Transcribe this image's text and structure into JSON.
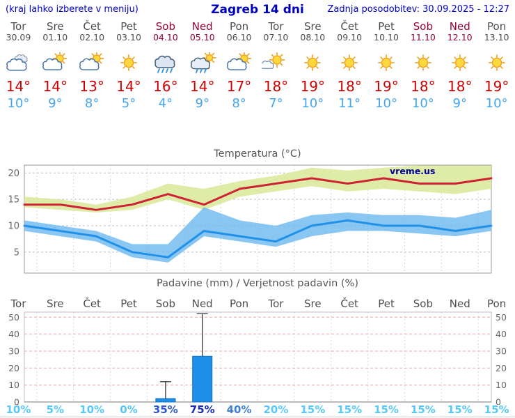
{
  "header": {
    "left_note": "(kraj lahko izberete v meniju)",
    "title": "Zagreb 14 dni",
    "updated": "Zadnja posodobitev: 30.09.2025 - 12:27"
  },
  "colors": {
    "header_blue": "#0000cc",
    "weekday_gray": "#4d4d4d",
    "weekend_red": "#990033",
    "high_temp_red": "#cc0000",
    "low_temp_blue": "#44a5ee"
  },
  "days": [
    {
      "name": "Tor",
      "date": "30.09",
      "weekend": false,
      "icon": "cloudy",
      "high": "14°",
      "low": "10°"
    },
    {
      "name": "Sre",
      "date": "01.10",
      "weekend": false,
      "icon": "partly-cloudy",
      "high": "14°",
      "low": "9°"
    },
    {
      "name": "Čet",
      "date": "02.10",
      "weekend": false,
      "icon": "partly-cloudy",
      "high": "13°",
      "low": "8°"
    },
    {
      "name": "Pet",
      "date": "03.10",
      "weekend": false,
      "icon": "sunny",
      "high": "14°",
      "low": "5°"
    },
    {
      "name": "Sob",
      "date": "04.10",
      "weekend": true,
      "icon": "rain",
      "high": "16°",
      "low": "4°"
    },
    {
      "name": "Ned",
      "date": "05.10",
      "weekend": true,
      "icon": "sun-rain",
      "high": "14°",
      "low": "9°"
    },
    {
      "name": "Pon",
      "date": "06.10",
      "weekend": false,
      "icon": "partly-cloudy",
      "high": "17°",
      "low": "8°"
    },
    {
      "name": "Tor",
      "date": "07.10",
      "weekend": false,
      "icon": "mostly-sunny",
      "high": "18°",
      "low": "7°"
    },
    {
      "name": "Sre",
      "date": "08.10",
      "weekend": false,
      "icon": "sunny",
      "high": "19°",
      "low": "10°"
    },
    {
      "name": "Čet",
      "date": "09.10",
      "weekend": false,
      "icon": "sunny",
      "high": "18°",
      "low": "11°"
    },
    {
      "name": "Pet",
      "date": "10.10",
      "weekend": false,
      "icon": "sunny",
      "high": "19°",
      "low": "10°"
    },
    {
      "name": "Sob",
      "date": "11.10",
      "weekend": true,
      "icon": "sunny",
      "high": "18°",
      "low": "10°"
    },
    {
      "name": "Ned",
      "date": "12.10",
      "weekend": true,
      "icon": "sunny",
      "high": "18°",
      "low": "9°"
    },
    {
      "name": "Pon",
      "date": "13.10",
      "weekend": false,
      "icon": "sunny",
      "high": "19°",
      "low": "10°"
    }
  ],
  "chart_data": [
    {
      "type": "line",
      "title": "Temperatura (°C)",
      "x": [
        "Tor",
        "Sre",
        "Čet",
        "Pet",
        "Sob",
        "Ned",
        "Pon",
        "Tor",
        "Sre",
        "Čet",
        "Pet",
        "Sob",
        "Ned",
        "Pon"
      ],
      "ylim": [
        1,
        21.5
      ],
      "yticks": [
        5,
        10,
        15,
        20
      ],
      "watermark": "vreme.us",
      "series": [
        {
          "name": "max-temp",
          "color": "#cc2233",
          "values": [
            14,
            14,
            13,
            14,
            16,
            14,
            17,
            18,
            19,
            18,
            19,
            18,
            18,
            19
          ]
        },
        {
          "name": "min-temp",
          "color": "#2090e8",
          "values": [
            10,
            9,
            8,
            5,
            4,
            9,
            8,
            7,
            10,
            11,
            10,
            10,
            9,
            10
          ]
        }
      ],
      "bands": [
        {
          "name": "max-range",
          "color": "#dcea9e",
          "opacity": 0.9,
          "upper": [
            15.5,
            15,
            14,
            15.5,
            18,
            17,
            18.5,
            19.5,
            21,
            20.5,
            21,
            21.5,
            21.5,
            22.5
          ],
          "lower": [
            13.5,
            13,
            12.5,
            13,
            15,
            13,
            15.5,
            16.5,
            17.5,
            16.5,
            17,
            16.5,
            16,
            17
          ]
        },
        {
          "name": "min-range",
          "color": "#6cb8ee",
          "opacity": 0.8,
          "upper": [
            11,
            10,
            9,
            6.5,
            6.5,
            13.5,
            11,
            10,
            12,
            12.5,
            12,
            12,
            11.5,
            13
          ],
          "lower": [
            9,
            8,
            7,
            4,
            3,
            8,
            7,
            6,
            8,
            9,
            9,
            8.5,
            8,
            9
          ]
        }
      ]
    },
    {
      "type": "bar",
      "title": "Padavine (mm) / Verjetnost padavin (%)",
      "categories": [
        "Tor",
        "Sre",
        "Čet",
        "Pet",
        "Sob",
        "Ned",
        "Pon",
        "Tor",
        "Sre",
        "Čet",
        "Pet",
        "Sob",
        "Ned",
        "Pon"
      ],
      "values": [
        0,
        0,
        0,
        0,
        2,
        27,
        0,
        0,
        0,
        0,
        0,
        0,
        0,
        0
      ],
      "whiskers": [
        null,
        null,
        null,
        null,
        {
          "min": 0,
          "max": 12
        },
        {
          "min": 10,
          "max": 52
        },
        null,
        null,
        null,
        null,
        null,
        null,
        null,
        null
      ],
      "ylim": [
        0,
        53
      ],
      "yticks": [
        0,
        10,
        20,
        30,
        40,
        50
      ],
      "bar_color": "#1e8fe8",
      "probabilities": [
        {
          "label": "10%",
          "color": "#58c8f8"
        },
        {
          "label": "5%",
          "color": "#58c8f8"
        },
        {
          "label": "10%",
          "color": "#58c8f8"
        },
        {
          "label": "0%",
          "color": "#58c8f8"
        },
        {
          "label": "35%",
          "color": "#2b58c8"
        },
        {
          "label": "75%",
          "color": "#1a2fb0"
        },
        {
          "label": "40%",
          "color": "#3f7fd8"
        },
        {
          "label": "20%",
          "color": "#58c8f8"
        },
        {
          "label": "15%",
          "color": "#58c8f8"
        },
        {
          "label": "15%",
          "color": "#58c8f8"
        },
        {
          "label": "15%",
          "color": "#58c8f8"
        },
        {
          "label": "15%",
          "color": "#58c8f8"
        },
        {
          "label": "15%",
          "color": "#58c8f8"
        },
        {
          "label": "15%",
          "color": "#58c8f8"
        }
      ]
    }
  ]
}
